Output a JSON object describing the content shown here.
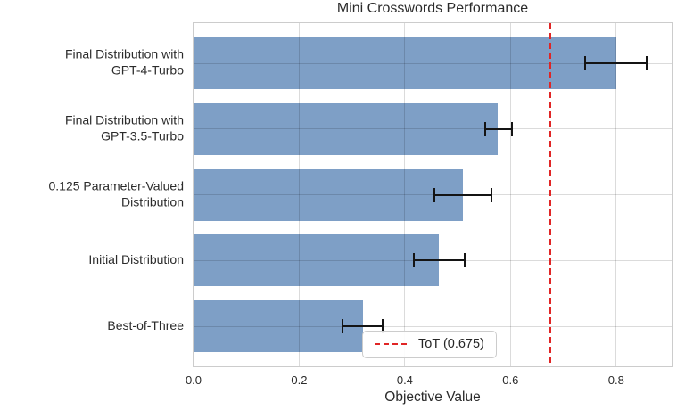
{
  "chart_data": {
    "type": "bar",
    "orientation": "horizontal",
    "title": "Mini Crosswords Performance",
    "xlabel": "Objective Value",
    "ylabel": "",
    "categories": [
      "Final Distribution with\nGPT-4-Turbo",
      "Final Distribution with\nGPT-3.5-Turbo",
      "0.125 Parameter-Valued\nDistribution",
      "Initial Distribution",
      "Best-of-Three"
    ],
    "values": [
      0.8,
      0.575,
      0.51,
      0.465,
      0.32
    ],
    "error_low": [
      0.74,
      0.55,
      0.455,
      0.415,
      0.28
    ],
    "error_high": [
      0.86,
      0.605,
      0.565,
      0.515,
      0.36
    ],
    "x_ticks": [
      "0.0",
      "0.2",
      "0.4",
      "0.6",
      "0.8"
    ],
    "x_tick_values": [
      0.0,
      0.2,
      0.4,
      0.6,
      0.8
    ],
    "xlim": [
      0,
      0.905
    ],
    "grid": true,
    "reference_line": {
      "value": 0.675,
      "style": "dashed",
      "color": "#e02525"
    },
    "legend": {
      "position": "lower-center-inside",
      "label": "ToT (0.675)",
      "marker": "red-dashed-line"
    },
    "colors": {
      "bar": "#7e9fc6",
      "reference": "#e02525",
      "grid": "#d9d9d9",
      "border": "#cccccc",
      "error_bar": "#141414",
      "text": "#2b2b2b",
      "background": "#ffffff"
    }
  }
}
